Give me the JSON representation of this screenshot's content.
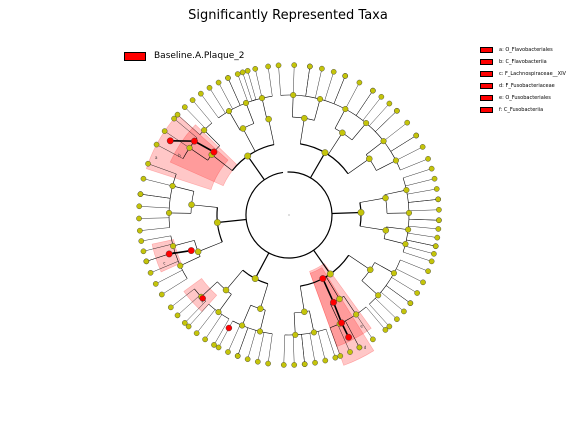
{
  "title": "Significantly Represented Taxa",
  "colors": {
    "node": "#c4c40a",
    "highlight": "#ff0000",
    "shade": "#ff0000",
    "edge": "#000000"
  },
  "legend": {
    "group": "Baseline.A.Plaque_2",
    "group_color": "#ff0000"
  },
  "key": [
    {
      "letter": "a",
      "text": "a: O_Flavobacteriales"
    },
    {
      "letter": "b",
      "text": "b: C_Flavobacteriia"
    },
    {
      "letter": "c",
      "text": "c: F_Lachnospiraceae__XIV"
    },
    {
      "letter": "d",
      "text": "d: F_Fusobacteriaceae"
    },
    {
      "letter": "e",
      "text": "e: O_Fusobacteriales"
    },
    {
      "letter": "f",
      "text": "f: C_Fusobacteriia"
    }
  ]
}
